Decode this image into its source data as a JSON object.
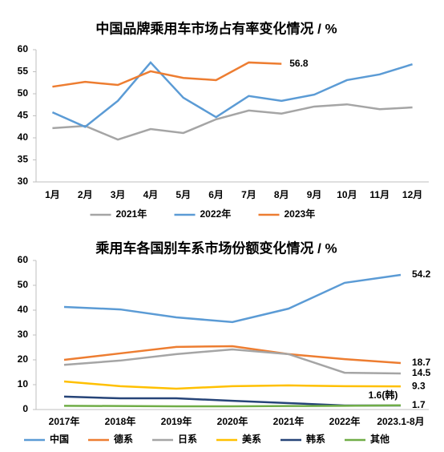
{
  "chart_data": [
    {
      "type": "line",
      "title": "中国品牌乘用车市场占有率变化情况 / %",
      "categories": [
        "1月",
        "2月",
        "3月",
        "4月",
        "5月",
        "6月",
        "7月",
        "8月",
        "9月",
        "10月",
        "11月",
        "12月"
      ],
      "series": [
        {
          "name": "2021年",
          "color": "#a5a5a5",
          "values": [
            42.2,
            42.7,
            39.6,
            42.0,
            41.1,
            44.2,
            46.2,
            45.5,
            47.1,
            47.6,
            46.5,
            46.9
          ]
        },
        {
          "name": "2022年",
          "color": "#5b9bd5",
          "values": [
            45.8,
            42.5,
            48.4,
            57.1,
            49.1,
            44.7,
            49.5,
            48.4,
            49.8,
            53.1,
            54.4,
            56.7
          ]
        },
        {
          "name": "2023年",
          "color": "#ed7d31",
          "values": [
            51.6,
            52.7,
            52.0,
            55.1,
            53.6,
            53.1,
            57.1,
            56.8,
            null,
            null,
            null,
            null
          ],
          "value_labels": [
            null,
            null,
            null,
            null,
            null,
            null,
            null,
            "56.8",
            null,
            null,
            null,
            null
          ]
        }
      ],
      "ylim": [
        30,
        60
      ],
      "yticks": [
        30,
        35,
        40,
        45,
        50,
        55,
        60
      ],
      "grid": false
    },
    {
      "type": "line",
      "title": "乘用车各国别车系市场份额变化情况 / %",
      "categories": [
        "2017年",
        "2018年",
        "2019年",
        "2020年",
        "2021年",
        "2022年",
        "2023.1-8月"
      ],
      "series": [
        {
          "name": "中国",
          "color": "#5b9bd5",
          "values": [
            41.3,
            40.3,
            37.1,
            35.2,
            40.6,
            51.0,
            54.2
          ],
          "value_labels": [
            null,
            null,
            null,
            null,
            null,
            null,
            "54.2"
          ]
        },
        {
          "name": "德系",
          "color": "#ed7d31",
          "values": [
            20.0,
            22.6,
            25.2,
            25.5,
            22.3,
            20.3,
            18.7
          ],
          "value_labels": [
            null,
            null,
            null,
            null,
            null,
            null,
            "18.7"
          ]
        },
        {
          "name": "日系",
          "color": "#a5a5a5",
          "values": [
            18.0,
            19.7,
            22.3,
            24.2,
            22.3,
            14.8,
            14.5
          ],
          "value_labels": [
            null,
            null,
            null,
            null,
            null,
            null,
            "14.5"
          ]
        },
        {
          "name": "美系",
          "color": "#ffc000",
          "values": [
            11.3,
            9.4,
            8.4,
            9.4,
            9.7,
            9.4,
            9.3
          ],
          "value_labels": [
            null,
            null,
            null,
            null,
            null,
            null,
            "9.3"
          ]
        },
        {
          "name": "韩系",
          "color": "#264478",
          "values": [
            5.2,
            4.5,
            4.5,
            3.5,
            2.6,
            1.6,
            1.6
          ],
          "value_labels": [
            null,
            null,
            null,
            null,
            null,
            null,
            "1.6(韩)"
          ]
        },
        {
          "name": "其他",
          "color": "#70ad47",
          "values": [
            1.5,
            1.4,
            1.3,
            1.3,
            1.4,
            1.5,
            1.7
          ],
          "value_labels": [
            null,
            null,
            null,
            null,
            null,
            null,
            "1.7"
          ]
        }
      ],
      "ylim": [
        0,
        60
      ],
      "yticks": [
        0,
        10,
        20,
        30,
        40,
        50,
        60
      ],
      "grid": false
    }
  ]
}
